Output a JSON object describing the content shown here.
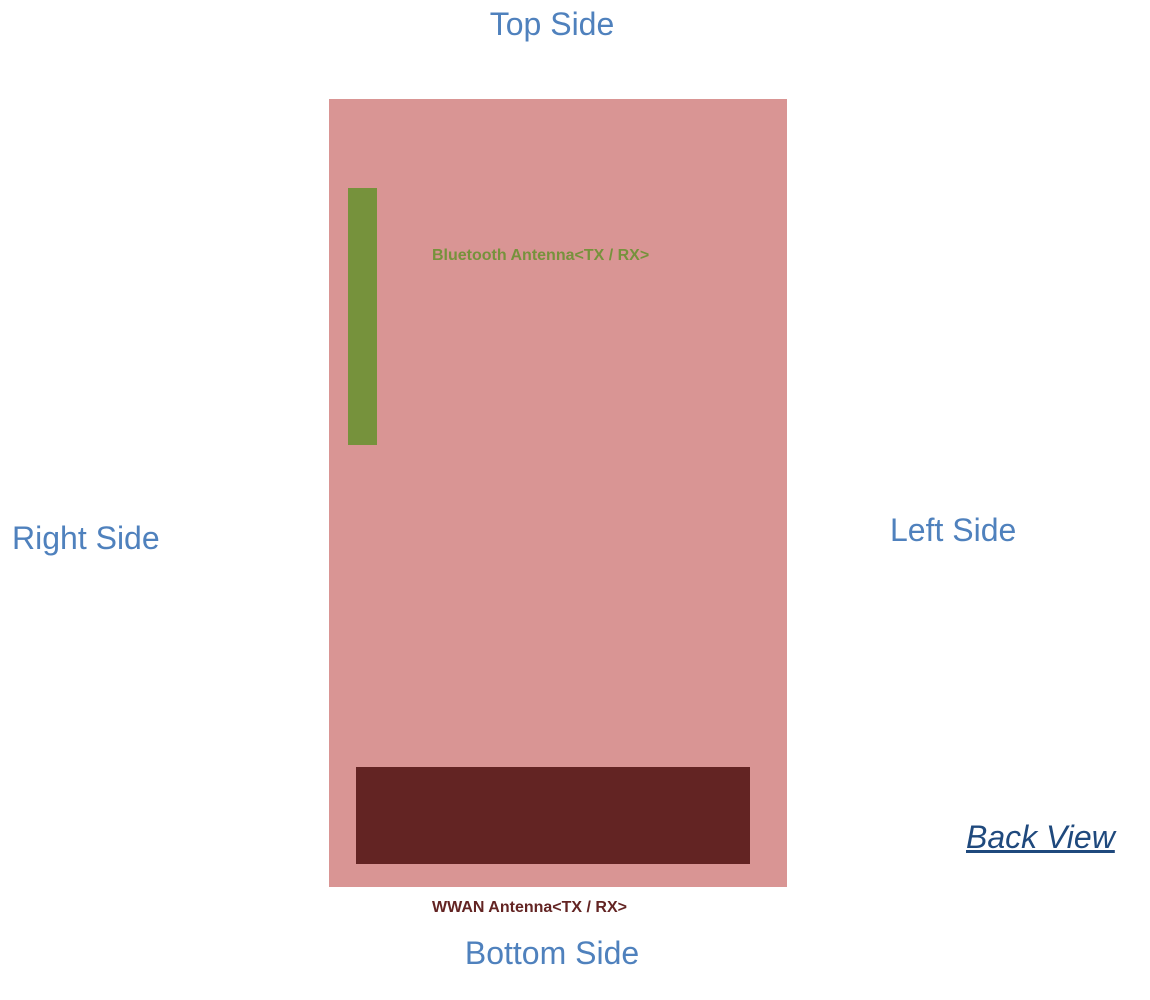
{
  "sides": {
    "top": "Top Side",
    "right": "Right Side",
    "left": "Left Side",
    "bottom": "Bottom Side"
  },
  "view": "Back View",
  "antennas": {
    "bluetooth": "Bluetooth Antenna<TX / RX>",
    "wwan": "WWAN Antenna<TX / RX>"
  },
  "colors": {
    "side_text": "#4f81bd",
    "view_text": "#1f497d",
    "device_body": "#d99594",
    "bluetooth": "#76923c",
    "wwan": "#632423"
  }
}
